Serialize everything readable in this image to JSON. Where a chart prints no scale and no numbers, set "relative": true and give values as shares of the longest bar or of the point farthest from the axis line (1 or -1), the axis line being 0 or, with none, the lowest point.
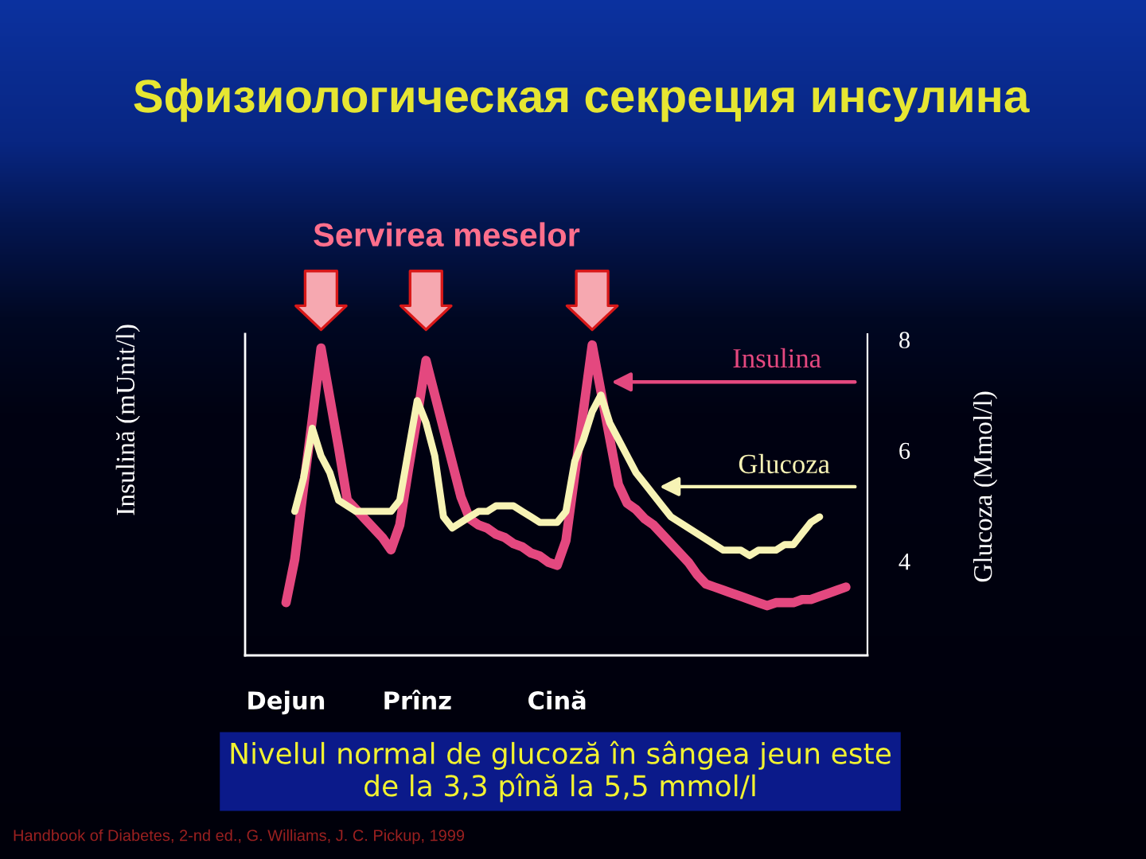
{
  "chart_data": [
    {
      "type": "line",
      "title": "Sфизиологическая секреция инсулина",
      "ylabel": "Insulină (mUnit/l)",
      "relative": true,
      "categories": [
        "Dejun",
        null,
        null,
        null,
        null,
        null,
        null,
        null,
        null,
        null,
        null,
        null,
        null,
        null,
        null,
        "Prînz",
        null,
        null,
        null,
        null,
        null,
        null,
        null,
        null,
        null,
        null,
        null,
        null,
        null,
        null,
        null,
        "Cină",
        null,
        null,
        null,
        null,
        null,
        null,
        null,
        null,
        null,
        null,
        null,
        null,
        null,
        null,
        null,
        null,
        null,
        null,
        null,
        null,
        null,
        null,
        null,
        null,
        null,
        null,
        null,
        null,
        null,
        null,
        null,
        null,
        null
      ],
      "series": [
        {
          "name": "Insulina",
          "color": "#e4487f",
          "values": [
            0.17,
            0.31,
            0.54,
            0.76,
            0.99,
            0.83,
            0.67,
            0.5,
            0.47,
            0.44,
            0.41,
            0.38,
            0.34,
            0.42,
            0.6,
            0.77,
            0.95,
            0.84,
            0.73,
            0.62,
            0.51,
            0.44,
            0.42,
            0.41,
            0.39,
            0.38,
            0.36,
            0.35,
            0.33,
            0.32,
            0.3,
            0.29,
            0.37,
            0.58,
            0.79,
            1.0,
            0.85,
            0.7,
            0.55,
            0.49,
            0.47,
            0.44,
            0.42,
            0.39,
            0.36,
            0.33,
            0.3,
            0.26,
            0.23,
            0.22,
            0.21,
            0.2,
            0.19,
            0.18,
            0.17,
            0.16,
            0.17,
            0.17,
            0.17,
            0.18,
            0.18,
            0.19,
            0.2,
            0.21,
            0.22
          ]
        }
      ],
      "annotations": [
        "Servirea meselor",
        "Nivelul normal de glucoză în sângea jeun este\nde la 3,3 pînă la 5,5 mmol/l",
        "Handbook of Diabetes, 2-nd ed., G. Williams, J. C. Pickup, 1999"
      ]
    },
    {
      "type": "line",
      "ylabel": "Glucoza (Mmol/l)",
      "categories": [
        null,
        null,
        null,
        null,
        null,
        null,
        null,
        null,
        null,
        null,
        null,
        null,
        null,
        null,
        null,
        null,
        null,
        null,
        null,
        null,
        null,
        null,
        null,
        null,
        null,
        null,
        null,
        null,
        null,
        null,
        null,
        null,
        null,
        null,
        null,
        null,
        null,
        null,
        null,
        null,
        null,
        null,
        null,
        null,
        null,
        null,
        null,
        null,
        null,
        null,
        null,
        null,
        null,
        null,
        null,
        null,
        null,
        null,
        null,
        null,
        null,
        null,
        null,
        null,
        null
      ],
      "ylim": [
        2.3,
        8.1
      ],
      "yticks": [
        4,
        6,
        8
      ],
      "tick_labels": "y",
      "series": [
        {
          "name": "Glucoza",
          "color": "#f7f3b5",
          "values": [
            null,
            4.9,
            5.5,
            6.4,
            5.9,
            5.6,
            5.1,
            5.0,
            4.9,
            4.9,
            4.9,
            4.9,
            4.9,
            5.1,
            6.0,
            6.9,
            6.5,
            5.9,
            4.8,
            4.6,
            4.7,
            4.8,
            4.9,
            4.9,
            5.0,
            5.0,
            5.0,
            4.9,
            4.8,
            4.7,
            4.7,
            4.7,
            4.9,
            5.8,
            6.2,
            6.7,
            7.0,
            6.5,
            6.2,
            5.9,
            5.6,
            5.4,
            5.2,
            5.0,
            4.8,
            4.7,
            4.6,
            4.5,
            4.4,
            4.3,
            4.2,
            4.2,
            4.2,
            4.1,
            4.2,
            4.2,
            4.2,
            4.3,
            4.3,
            4.5,
            4.7,
            4.8,
            null,
            null,
            null
          ]
        }
      ]
    }
  ]
}
